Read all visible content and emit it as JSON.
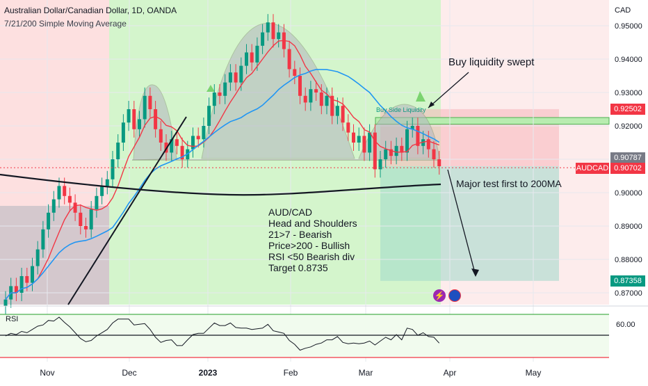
{
  "header": {
    "title": "Australian Dollar/Canadian Dollar, 1D, OANDA",
    "indicator": "7/21/200 Simple Moving Average"
  },
  "colors": {
    "bull": "#089981",
    "bear": "#f23645",
    "ma7": "#f23645",
    "ma21": "#2196f3",
    "ma200": "#131722",
    "zone_green": "#d4f5cc",
    "zone_red": "#fde0e0",
    "pattern_fill": "#b2b5be"
  },
  "chart_data": [
    {
      "type": "candlestick",
      "title": "Australian Dollar/Canadian Dollar, 1D, OANDA",
      "currency": "CAD",
      "ylim": [
        0.865,
        0.957
      ],
      "y_ticks": [
        "0.95000",
        "0.94000",
        "0.93000",
        "0.92000",
        "0.91000",
        "0.90000",
        "0.89000",
        "0.88000",
        "0.87000"
      ],
      "y_tick_values": [
        0.95,
        0.94,
        0.93,
        0.92,
        0.91,
        0.9,
        0.89,
        0.88,
        0.87
      ],
      "x_ticks": [
        "Nov",
        "Dec",
        "2023",
        "Feb",
        "Mar",
        "Apr",
        "May"
      ],
      "price_tags": [
        {
          "label": "0.92502",
          "value": 0.92502,
          "color": "#f23645"
        },
        {
          "label": "0.90787",
          "value": 0.90787,
          "color": "#787b86"
        },
        {
          "label": "0.90702",
          "value": 0.90702,
          "color": "#f23645"
        },
        {
          "label": "0.87358",
          "value": 0.87358,
          "color": "#089981"
        }
      ],
      "symbol_tag": "AUDCAD",
      "close_approx": [
        0.868,
        0.872,
        0.87,
        0.875,
        0.873,
        0.878,
        0.883,
        0.889,
        0.894,
        0.898,
        0.902,
        0.899,
        0.897,
        0.894,
        0.89,
        0.889,
        0.895,
        0.899,
        0.902,
        0.904,
        0.91,
        0.915,
        0.921,
        0.925,
        0.919,
        0.922,
        0.929,
        0.925,
        0.919,
        0.915,
        0.912,
        0.916,
        0.914,
        0.91,
        0.913,
        0.917,
        0.916,
        0.92,
        0.926,
        0.93,
        0.929,
        0.933,
        0.936,
        0.933,
        0.938,
        0.942,
        0.939,
        0.944,
        0.948,
        0.951,
        0.946,
        0.948,
        0.943,
        0.937,
        0.935,
        0.929,
        0.927,
        0.931,
        0.93,
        0.926,
        0.929,
        0.923,
        0.926,
        0.921,
        0.918,
        0.915,
        0.917,
        0.912,
        0.918,
        0.907,
        0.91,
        0.913,
        0.911,
        0.914,
        0.912,
        0.919,
        0.92,
        0.914,
        0.916,
        0.913,
        0.91,
        0.9079
      ]
    },
    {
      "type": "line",
      "title": "RSI",
      "levels": [
        {
          "label": "60.00",
          "value": 60
        }
      ],
      "ylim": [
        20,
        80
      ]
    }
  ],
  "annotations": {
    "buy_liquidity": "Buy liquidity swept",
    "buy_side": "Buy Side Liquidity",
    "major_test": "Major test first to 200MA",
    "notes": [
      "AUD/CAD",
      "Head and Shoulders",
      "21>7 - Bearish",
      "Price>200 - Bullish",
      "RSI <50 Bearish div",
      "Target 0.8735"
    ]
  }
}
